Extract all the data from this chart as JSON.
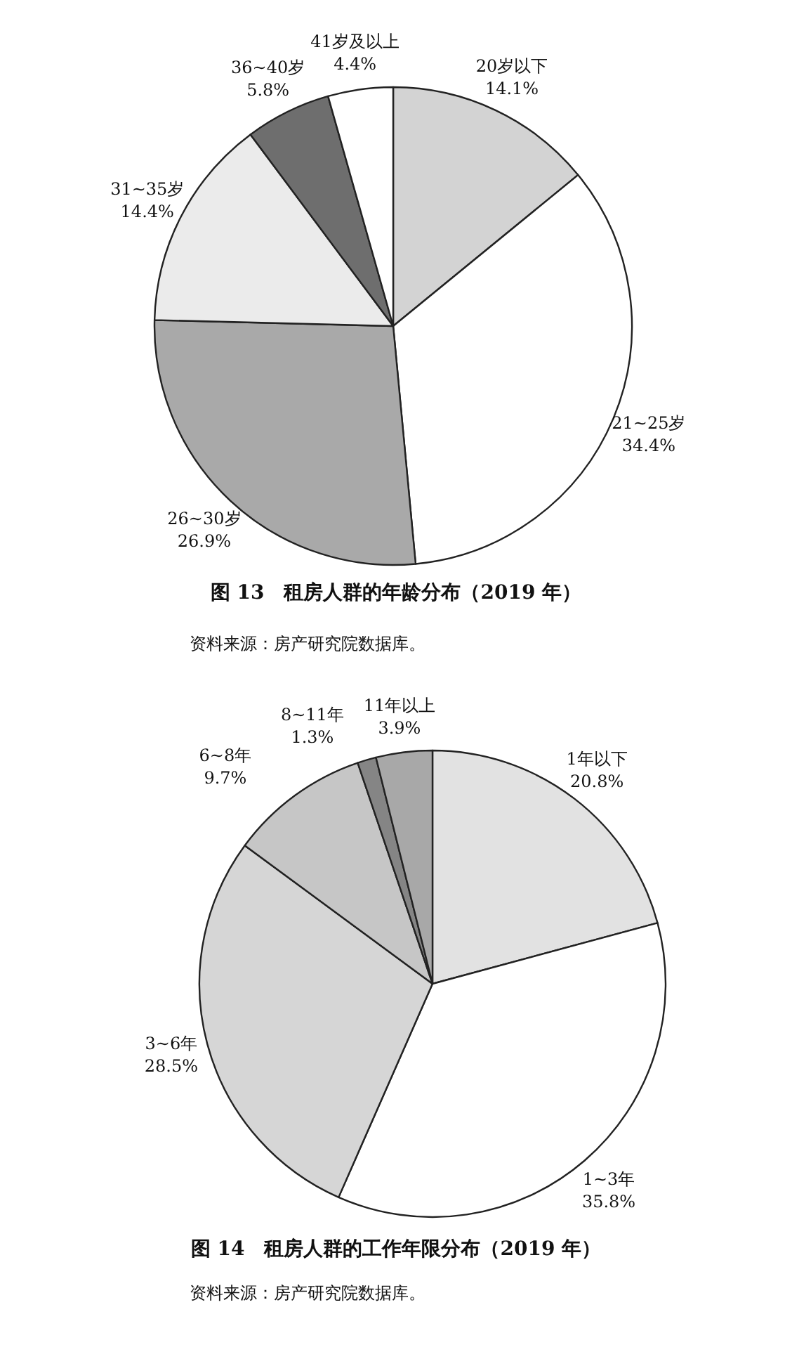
{
  "chart_data": [
    {
      "type": "pie",
      "title": "图 13　租房人群的年龄分布（2019 年）",
      "categories": [
        "20岁以下",
        "21~25岁",
        "26~30岁",
        "31~35岁",
        "36~40岁",
        "41岁及以上"
      ],
      "values": [
        14.1,
        34.4,
        26.9,
        14.4,
        5.8,
        4.4
      ],
      "value_labels": [
        "14.1%",
        "34.4%",
        "26.9%",
        "14.4%",
        "5.8%",
        "4.4%"
      ],
      "colors": [
        "#d3d3d3",
        "#ffffff",
        "#a9a9a9",
        "#ebebeb",
        "#6e6e6e",
        "#ffffff"
      ],
      "annotations": [
        "资料来源：房产研究院数据库。"
      ]
    },
    {
      "type": "pie",
      "title": "图 14　租房人群的工作年限分布（2019 年）",
      "categories": [
        "1年以下",
        "1~3年",
        "3~6年",
        "6~8年",
        "8~11年",
        "11年以上"
      ],
      "values": [
        20.8,
        35.8,
        28.5,
        9.7,
        1.3,
        3.9
      ],
      "value_labels": [
        "20.8%",
        "35.8%",
        "28.5%",
        "9.7%",
        "1.3%",
        "3.9%"
      ],
      "colors": [
        "#e2e2e2",
        "#ffffff",
        "#d6d6d6",
        "#c6c6c6",
        "#858585",
        "#a8a8a8"
      ],
      "annotations": [
        "资料来源：房产研究院数据库。"
      ]
    }
  ]
}
